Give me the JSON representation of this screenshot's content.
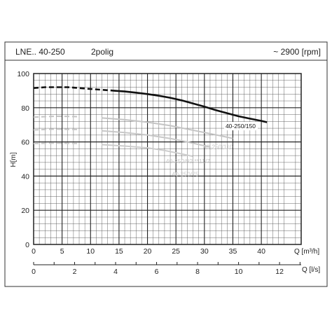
{
  "header": {
    "model": "LNE.. 40-250",
    "variant": "2polig",
    "speed": "~ 2900 [rpm]"
  },
  "chart_data": {
    "type": "line",
    "ylabel": "H[m]",
    "xlabel_primary": "Q [m³/h]",
    "xlabel_secondary": "Q [l/s]",
    "xlim": [
      0,
      47
    ],
    "ylim": [
      0,
      100
    ],
    "x_ticks": [
      0,
      5,
      10,
      15,
      20,
      25,
      30,
      35,
      40
    ],
    "y_ticks": [
      0,
      20,
      40,
      60,
      80,
      100
    ],
    "x2_ticks": [
      0,
      2,
      4,
      6,
      8,
      10,
      12
    ],
    "grid": true,
    "series": [
      {
        "name": "40-250/150",
        "color": "#111111",
        "dashed_until_x": 14,
        "points": [
          [
            0,
            91.5
          ],
          [
            2,
            92
          ],
          [
            4,
            92
          ],
          [
            6,
            92
          ],
          [
            8,
            91.5
          ],
          [
            10,
            91
          ],
          [
            12,
            90.5
          ],
          [
            14,
            90
          ],
          [
            16,
            89.5
          ],
          [
            18,
            88.8
          ],
          [
            20,
            88
          ],
          [
            22,
            87
          ],
          [
            24,
            85.8
          ],
          [
            26,
            84.3
          ],
          [
            28,
            82.5
          ],
          [
            30,
            80.6
          ],
          [
            32,
            78.6
          ],
          [
            34,
            76.8
          ],
          [
            36,
            75
          ],
          [
            38,
            73.6
          ],
          [
            40,
            72.3
          ],
          [
            41,
            71.5
          ]
        ]
      },
      {
        "name": "40-250/110",
        "color": "#c4c4c4",
        "dashed_until_x": 10,
        "points": [
          [
            0,
            74.5
          ],
          [
            4,
            75
          ],
          [
            8,
            74.8
          ],
          [
            12,
            74
          ],
          [
            16,
            73
          ],
          [
            20,
            71.5
          ],
          [
            24,
            69.5
          ],
          [
            27,
            67.5
          ],
          [
            30,
            65.5
          ],
          [
            33,
            63.5
          ],
          [
            35,
            62
          ]
        ]
      },
      {
        "name": "40-250/92 **11/7",
        "color": "#c8c8c8",
        "dashed_until_x": 10,
        "points": [
          [
            0,
            67
          ],
          [
            4,
            67.5
          ],
          [
            8,
            67.2
          ],
          [
            12,
            66.5
          ],
          [
            16,
            65.5
          ],
          [
            20,
            64
          ],
          [
            24,
            62
          ],
          [
            27,
            60
          ],
          [
            29,
            58.5
          ],
          [
            31,
            57
          ]
        ]
      },
      {
        "name": "40-250/75",
        "color": "#cccccc",
        "dashed_until_x": 10,
        "points": [
          [
            0,
            59
          ],
          [
            4,
            59.3
          ],
          [
            8,
            59
          ],
          [
            12,
            58.4
          ],
          [
            16,
            57.6
          ],
          [
            20,
            56.5
          ],
          [
            23,
            55
          ],
          [
            26,
            53
          ],
          [
            28,
            51.5
          ]
        ]
      }
    ]
  }
}
